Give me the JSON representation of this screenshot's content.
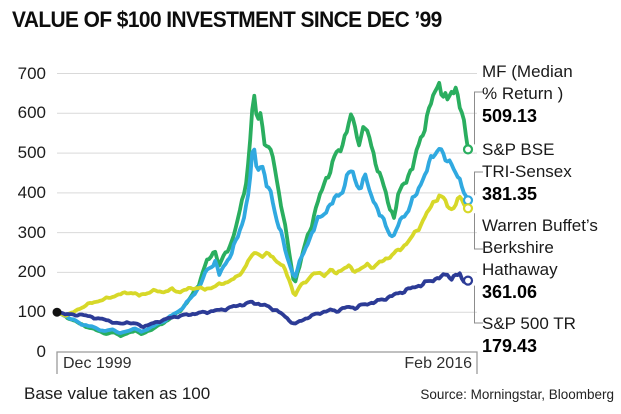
{
  "header": {
    "title": "VALUE OF $100 INVESTMENT SINCE DEC ’99"
  },
  "chart_data": {
    "type": "line",
    "title": "VALUE OF $100 INVESTMENT SINCE DEC ’99",
    "x_axis": {
      "start_label": "Dec 1999",
      "end_label": "Feb 2016"
    },
    "y_ticks": [
      700,
      600,
      500,
      400,
      300,
      200,
      100,
      0
    ],
    "ylim": [
      0,
      700
    ],
    "grid": "horizontal",
    "legend_position": "right",
    "base_note": "Base value taken as 100",
    "start_value": 100,
    "series": [
      {
        "id": "mf-median",
        "name": "MF (Median % Return )",
        "end_value": 509.13,
        "color": "#2aae5f",
        "keypoints": [
          [
            0,
            100
          ],
          [
            0.02,
            90
          ],
          [
            0.05,
            74
          ],
          [
            0.08,
            60
          ],
          [
            0.1,
            54
          ],
          [
            0.12,
            45
          ],
          [
            0.14,
            50
          ],
          [
            0.155,
            40
          ],
          [
            0.17,
            46
          ],
          [
            0.19,
            55
          ],
          [
            0.205,
            44
          ],
          [
            0.22,
            52
          ],
          [
            0.24,
            62
          ],
          [
            0.26,
            74
          ],
          [
            0.28,
            88
          ],
          [
            0.295,
            100
          ],
          [
            0.32,
            128
          ],
          [
            0.345,
            172
          ],
          [
            0.365,
            228
          ],
          [
            0.385,
            256
          ],
          [
            0.395,
            216
          ],
          [
            0.41,
            248
          ],
          [
            0.425,
            278
          ],
          [
            0.44,
            330
          ],
          [
            0.455,
            400
          ],
          [
            0.468,
            500
          ],
          [
            0.478,
            650
          ],
          [
            0.487,
            580
          ],
          [
            0.497,
            600
          ],
          [
            0.507,
            520
          ],
          [
            0.52,
            500
          ],
          [
            0.53,
            468
          ],
          [
            0.54,
            400
          ],
          [
            0.553,
            330
          ],
          [
            0.565,
            245
          ],
          [
            0.578,
            172
          ],
          [
            0.59,
            215
          ],
          [
            0.605,
            275
          ],
          [
            0.62,
            325
          ],
          [
            0.635,
            375
          ],
          [
            0.65,
            425
          ],
          [
            0.665,
            460
          ],
          [
            0.68,
            495
          ],
          [
            0.695,
            525
          ],
          [
            0.708,
            572
          ],
          [
            0.717,
            590
          ],
          [
            0.727,
            552
          ],
          [
            0.737,
            532
          ],
          [
            0.747,
            568
          ],
          [
            0.757,
            545
          ],
          [
            0.767,
            508
          ],
          [
            0.777,
            478
          ],
          [
            0.787,
            438
          ],
          [
            0.8,
            398
          ],
          [
            0.81,
            360
          ],
          [
            0.82,
            345
          ],
          [
            0.83,
            388
          ],
          [
            0.842,
            420
          ],
          [
            0.853,
            442
          ],
          [
            0.865,
            465
          ],
          [
            0.877,
            505
          ],
          [
            0.89,
            556
          ],
          [
            0.9,
            590
          ],
          [
            0.91,
            622
          ],
          [
            0.92,
            652
          ],
          [
            0.93,
            678
          ],
          [
            0.94,
            652
          ],
          [
            0.95,
            624
          ],
          [
            0.96,
            652
          ],
          [
            0.97,
            668
          ],
          [
            0.978,
            636
          ],
          [
            0.99,
            576
          ],
          [
            1,
            509.13
          ]
        ]
      },
      {
        "id": "bse-tri-sensex",
        "name": "S&P BSE TRI-Sensex",
        "end_value": 381.35,
        "color": "#30a9e0",
        "keypoints": [
          [
            0,
            100
          ],
          [
            0.03,
            86
          ],
          [
            0.06,
            70
          ],
          [
            0.09,
            62
          ],
          [
            0.115,
            52
          ],
          [
            0.135,
            57
          ],
          [
            0.155,
            47
          ],
          [
            0.17,
            52
          ],
          [
            0.19,
            60
          ],
          [
            0.205,
            50
          ],
          [
            0.22,
            58
          ],
          [
            0.24,
            68
          ],
          [
            0.26,
            78
          ],
          [
            0.28,
            92
          ],
          [
            0.3,
            106
          ],
          [
            0.32,
            128
          ],
          [
            0.345,
            162
          ],
          [
            0.365,
            205
          ],
          [
            0.385,
            228
          ],
          [
            0.395,
            194
          ],
          [
            0.41,
            222
          ],
          [
            0.425,
            252
          ],
          [
            0.44,
            288
          ],
          [
            0.455,
            340
          ],
          [
            0.468,
            420
          ],
          [
            0.478,
            515
          ],
          [
            0.487,
            455
          ],
          [
            0.497,
            480
          ],
          [
            0.51,
            420
          ],
          [
            0.52,
            395
          ],
          [
            0.53,
            355
          ],
          [
            0.545,
            300
          ],
          [
            0.56,
            235
          ],
          [
            0.578,
            188
          ],
          [
            0.59,
            222
          ],
          [
            0.605,
            262
          ],
          [
            0.62,
            300
          ],
          [
            0.635,
            330
          ],
          [
            0.65,
            352
          ],
          [
            0.665,
            368
          ],
          [
            0.68,
            388
          ],
          [
            0.695,
            410
          ],
          [
            0.708,
            442
          ],
          [
            0.717,
            458
          ],
          [
            0.727,
            428
          ],
          [
            0.737,
            412
          ],
          [
            0.747,
            438
          ],
          [
            0.757,
            418
          ],
          [
            0.767,
            390
          ],
          [
            0.777,
            368
          ],
          [
            0.787,
            340
          ],
          [
            0.8,
            318
          ],
          [
            0.81,
            300
          ],
          [
            0.82,
            290
          ],
          [
            0.83,
            318
          ],
          [
            0.842,
            340
          ],
          [
            0.853,
            358
          ],
          [
            0.865,
            378
          ],
          [
            0.877,
            402
          ],
          [
            0.89,
            438
          ],
          [
            0.9,
            460
          ],
          [
            0.91,
            478
          ],
          [
            0.92,
            502
          ],
          [
            0.93,
            518
          ],
          [
            0.94,
            498
          ],
          [
            0.95,
            468
          ],
          [
            0.96,
            478
          ],
          [
            0.97,
            458
          ],
          [
            0.978,
            432
          ],
          [
            0.99,
            400
          ],
          [
            1,
            381.35
          ]
        ]
      },
      {
        "id": "berkshire-hathaway",
        "name": "Warren Buffet’s Berkshire Hathaway",
        "end_value": 361.06,
        "color": "#d7d829",
        "keypoints": [
          [
            0,
            100
          ],
          [
            0.02,
            92
          ],
          [
            0.04,
            100
          ],
          [
            0.06,
            112
          ],
          [
            0.08,
            122
          ],
          [
            0.1,
            128
          ],
          [
            0.12,
            134
          ],
          [
            0.14,
            141
          ],
          [
            0.16,
            147
          ],
          [
            0.18,
            150
          ],
          [
            0.2,
            142
          ],
          [
            0.22,
            149
          ],
          [
            0.24,
            154
          ],
          [
            0.26,
            151
          ],
          [
            0.28,
            157
          ],
          [
            0.3,
            151
          ],
          [
            0.32,
            159
          ],
          [
            0.34,
            162
          ],
          [
            0.36,
            157
          ],
          [
            0.38,
            164
          ],
          [
            0.4,
            171
          ],
          [
            0.42,
            179
          ],
          [
            0.44,
            189
          ],
          [
            0.46,
            218
          ],
          [
            0.475,
            244
          ],
          [
            0.49,
            250
          ],
          [
            0.5,
            240
          ],
          [
            0.515,
            247
          ],
          [
            0.53,
            234
          ],
          [
            0.55,
            214
          ],
          [
            0.565,
            183
          ],
          [
            0.578,
            139
          ],
          [
            0.59,
            163
          ],
          [
            0.605,
            178
          ],
          [
            0.62,
            193
          ],
          [
            0.635,
            199
          ],
          [
            0.65,
            194
          ],
          [
            0.665,
            204
          ],
          [
            0.68,
            199
          ],
          [
            0.695,
            209
          ],
          [
            0.71,
            214
          ],
          [
            0.725,
            204
          ],
          [
            0.74,
            209
          ],
          [
            0.755,
            219
          ],
          [
            0.77,
            214
          ],
          [
            0.785,
            224
          ],
          [
            0.8,
            234
          ],
          [
            0.815,
            244
          ],
          [
            0.83,
            254
          ],
          [
            0.845,
            268
          ],
          [
            0.86,
            284
          ],
          [
            0.875,
            304
          ],
          [
            0.89,
            330
          ],
          [
            0.905,
            356
          ],
          [
            0.92,
            382
          ],
          [
            0.93,
            395
          ],
          [
            0.94,
            384
          ],
          [
            0.95,
            368
          ],
          [
            0.96,
            358
          ],
          [
            0.97,
            374
          ],
          [
            0.978,
            390
          ],
          [
            0.99,
            370
          ],
          [
            1,
            361.06
          ]
        ]
      },
      {
        "id": "sp500-tr",
        "name": "S&P 500 TR",
        "end_value": 179.43,
        "color": "#2c3b96",
        "keypoints": [
          [
            0,
            100
          ],
          [
            0.02,
            97
          ],
          [
            0.04,
            92
          ],
          [
            0.06,
            95
          ],
          [
            0.08,
            88
          ],
          [
            0.1,
            85
          ],
          [
            0.12,
            80
          ],
          [
            0.14,
            74
          ],
          [
            0.155,
            70
          ],
          [
            0.17,
            75
          ],
          [
            0.19,
            71
          ],
          [
            0.21,
            64
          ],
          [
            0.225,
            69
          ],
          [
            0.24,
            74
          ],
          [
            0.26,
            81
          ],
          [
            0.28,
            87
          ],
          [
            0.3,
            91
          ],
          [
            0.32,
            94
          ],
          [
            0.34,
            97
          ],
          [
            0.36,
            100
          ],
          [
            0.38,
            103
          ],
          [
            0.4,
            106
          ],
          [
            0.42,
            111
          ],
          [
            0.44,
            117
          ],
          [
            0.46,
            121
          ],
          [
            0.475,
            125
          ],
          [
            0.49,
            121
          ],
          [
            0.505,
            117
          ],
          [
            0.52,
            111
          ],
          [
            0.535,
            104
          ],
          [
            0.55,
            93
          ],
          [
            0.565,
            80
          ],
          [
            0.578,
            69
          ],
          [
            0.59,
            77
          ],
          [
            0.605,
            84
          ],
          [
            0.62,
            91
          ],
          [
            0.635,
            97
          ],
          [
            0.65,
            101
          ],
          [
            0.665,
            105
          ],
          [
            0.68,
            103
          ],
          [
            0.695,
            109
          ],
          [
            0.71,
            113
          ],
          [
            0.725,
            111
          ],
          [
            0.74,
            117
          ],
          [
            0.755,
            121
          ],
          [
            0.77,
            125
          ],
          [
            0.785,
            129
          ],
          [
            0.8,
            135
          ],
          [
            0.815,
            141
          ],
          [
            0.83,
            147
          ],
          [
            0.845,
            154
          ],
          [
            0.86,
            159
          ],
          [
            0.875,
            165
          ],
          [
            0.89,
            171
          ],
          [
            0.905,
            177
          ],
          [
            0.92,
            184
          ],
          [
            0.935,
            189
          ],
          [
            0.95,
            194
          ],
          [
            0.96,
            187
          ],
          [
            0.97,
            192
          ],
          [
            0.98,
            195
          ],
          [
            0.988,
            176
          ],
          [
            1,
            179.43
          ]
        ]
      }
    ]
  },
  "legend": {
    "items": [
      {
        "id": "mf-median",
        "lines": [
          "MF (Median",
          "% Return )"
        ],
        "value": "509.13"
      },
      {
        "id": "bse-tri-sensex",
        "lines": [
          "S&P BSE",
          "TRI-Sensex"
        ],
        "value": "381.35"
      },
      {
        "id": "berkshire-hathaway",
        "lines": [
          "Warren Buffet’s",
          "Berkshire",
          "Hathaway"
        ],
        "value": "361.06"
      },
      {
        "id": "sp500-tr",
        "lines": [
          "S&P 500 TR"
        ],
        "value": "179.43"
      }
    ]
  },
  "footer": {
    "source": "Source: Morningstar, Bloomberg"
  },
  "colors": {
    "grid": "#d9d9d9",
    "axis": "#9b9b9b",
    "leader": "#8c8c8c",
    "start_dot": "#111111",
    "text": "#1a1a1a"
  }
}
